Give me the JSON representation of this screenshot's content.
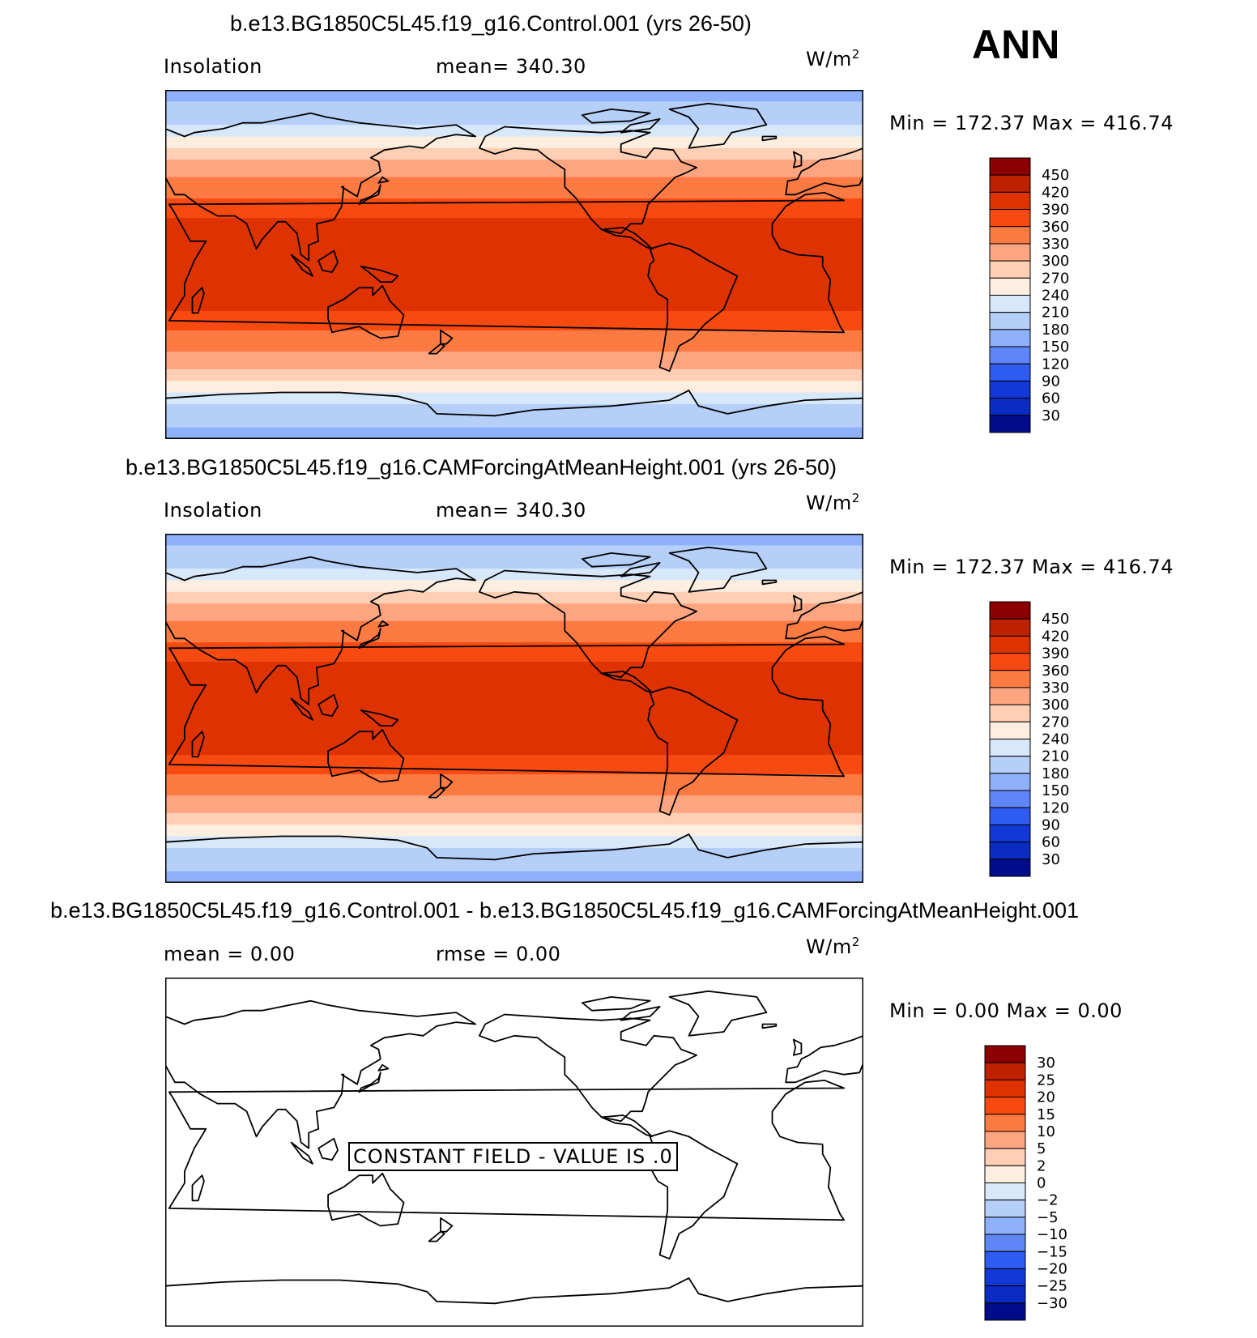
{
  "season": "ANN",
  "units_base": "W/m",
  "units_sup": "2",
  "chart_data": [
    {
      "type": "heatmap",
      "title": "b.e13.BG1850C5L45.f19_g16.Control.001 (yrs 26-50)",
      "left_label": "Insolation",
      "stat_text": "mean=  340.30",
      "minmax_text": "Min  =  172.37  Max  =  416.74",
      "colorbar_ticks": [
        "450",
        "420",
        "390",
        "360",
        "330",
        "300",
        "270",
        "240",
        "210",
        "180",
        "150",
        "120",
        "90",
        "60",
        "30"
      ],
      "colorbar_colors": [
        "#8b0000",
        "#be2100",
        "#de3300",
        "#f74a10",
        "#fd7a43",
        "#fda580",
        "#fecfb4",
        "#fdeee0",
        "#d7e8fa",
        "#b5cff9",
        "#8fb0fa",
        "#5e86f8",
        "#2e5cf0",
        "#1338d8",
        "#0a2cc2",
        "#000c8a"
      ],
      "bands": [
        {
          "lat_max": 90,
          "lat_min": 84,
          "value": 172.37
        },
        {
          "lat_max": 84,
          "lat_min": 72,
          "value": 185
        },
        {
          "lat_max": 72,
          "lat_min": 66,
          "value": 215
        },
        {
          "lat_max": 66,
          "lat_min": 60,
          "value": 250
        },
        {
          "lat_max": 60,
          "lat_min": 54,
          "value": 280
        },
        {
          "lat_max": 54,
          "lat_min": 45,
          "value": 310
        },
        {
          "lat_max": 45,
          "lat_min": 34,
          "value": 345
        },
        {
          "lat_max": 34,
          "lat_min": 24,
          "value": 375
        },
        {
          "lat_max": 24,
          "lat_min": -24,
          "value": 405
        },
        {
          "lat_max": -24,
          "lat_min": -34,
          "value": 375
        },
        {
          "lat_max": -34,
          "lat_min": -45,
          "value": 345
        },
        {
          "lat_max": -45,
          "lat_min": -54,
          "value": 310
        },
        {
          "lat_max": -54,
          "lat_min": -60,
          "value": 280
        },
        {
          "lat_max": -60,
          "lat_min": -66,
          "value": 250
        },
        {
          "lat_max": -66,
          "lat_min": -72,
          "value": 215
        },
        {
          "lat_max": -72,
          "lat_min": -84,
          "value": 185
        },
        {
          "lat_max": -84,
          "lat_min": -90,
          "value": 172.37
        }
      ]
    },
    {
      "type": "heatmap",
      "title": "b.e13.BG1850C5L45.f19_g16.CAMForcingAtMeanHeight.001 (yrs 26-50)",
      "left_label": "Insolation",
      "stat_text": "mean=  340.30",
      "minmax_text": "Min  =  172.37  Max  =  416.74",
      "colorbar_ticks": [
        "450",
        "420",
        "390",
        "360",
        "330",
        "300",
        "270",
        "240",
        "210",
        "180",
        "150",
        "120",
        "90",
        "60",
        "30"
      ],
      "colorbar_colors": [
        "#8b0000",
        "#be2100",
        "#de3300",
        "#f74a10",
        "#fd7a43",
        "#fda580",
        "#fecfb4",
        "#fdeee0",
        "#d7e8fa",
        "#b5cff9",
        "#8fb0fa",
        "#5e86f8",
        "#2e5cf0",
        "#1338d8",
        "#0a2cc2",
        "#000c8a"
      ],
      "bands": [
        {
          "lat_max": 90,
          "lat_min": 84,
          "value": 172.37
        },
        {
          "lat_max": 84,
          "lat_min": 72,
          "value": 185
        },
        {
          "lat_max": 72,
          "lat_min": 66,
          "value": 215
        },
        {
          "lat_max": 66,
          "lat_min": 60,
          "value": 250
        },
        {
          "lat_max": 60,
          "lat_min": 54,
          "value": 280
        },
        {
          "lat_max": 54,
          "lat_min": 45,
          "value": 310
        },
        {
          "lat_max": 45,
          "lat_min": 34,
          "value": 345
        },
        {
          "lat_max": 34,
          "lat_min": 24,
          "value": 375
        },
        {
          "lat_max": 24,
          "lat_min": -24,
          "value": 405
        },
        {
          "lat_max": -24,
          "lat_min": -34,
          "value": 375
        },
        {
          "lat_max": -34,
          "lat_min": -45,
          "value": 345
        },
        {
          "lat_max": -45,
          "lat_min": -54,
          "value": 310
        },
        {
          "lat_max": -54,
          "lat_min": -60,
          "value": 280
        },
        {
          "lat_max": -60,
          "lat_min": -66,
          "value": 250
        },
        {
          "lat_max": -66,
          "lat_min": -72,
          "value": 215
        },
        {
          "lat_max": -72,
          "lat_min": -84,
          "value": 185
        },
        {
          "lat_max": -84,
          "lat_min": -90,
          "value": 172.37
        }
      ]
    },
    {
      "type": "heatmap",
      "title": "b.e13.BG1850C5L45.f19_g16.Control.001 - b.e13.BG1850C5L45.f19_g16.CAMForcingAtMeanHeight.001",
      "left_label": "mean =    0.00",
      "stat_text": "rmse =    0.00",
      "minmax_text": "Min  =     0.00  Max  =     0.00",
      "constant_text": "CONSTANT FIELD - VALUE IS .0",
      "colorbar_ticks": [
        "30",
        "25",
        "20",
        "15",
        "10",
        "5",
        "2",
        "0",
        "−2",
        "−5",
        "−10",
        "−15",
        "−20",
        "−25",
        "−30"
      ],
      "colorbar_colors": [
        "#8b0000",
        "#be2100",
        "#de3300",
        "#f74a10",
        "#fd7a43",
        "#fda580",
        "#fecfb4",
        "#fdeee0",
        "#d7e8fa",
        "#b5cff9",
        "#8fb0fa",
        "#5e86f8",
        "#2e5cf0",
        "#1338d8",
        "#0a2cc2",
        "#000c8a"
      ],
      "bands": []
    }
  ]
}
